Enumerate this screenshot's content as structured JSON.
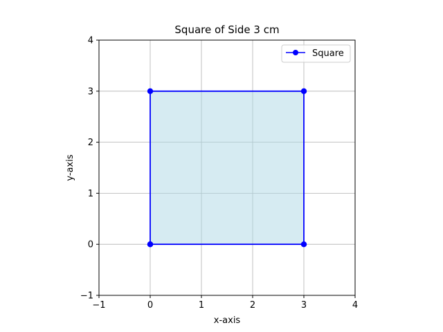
{
  "chart_data": {
    "type": "line",
    "title": "Square of Side 3 cm",
    "xlabel": "x-axis",
    "ylabel": "y-axis",
    "xlim": [
      -1,
      4
    ],
    "ylim": [
      -1,
      4
    ],
    "xticks": [
      -1,
      0,
      1,
      2,
      3,
      4
    ],
    "yticks": [
      -1,
      0,
      1,
      2,
      3,
      4
    ],
    "xtick_labels": [
      "−1",
      "0",
      "1",
      "2",
      "3",
      "4"
    ],
    "ytick_labels": [
      "−1",
      "0",
      "1",
      "2",
      "3",
      "4"
    ],
    "grid": true,
    "legend_position": "top-right",
    "series": [
      {
        "name": "Square",
        "x": [
          0,
          3,
          3,
          0,
          0
        ],
        "y": [
          0,
          0,
          3,
          3,
          0
        ],
        "color": "#0000ff",
        "marker": "circle",
        "fill": "#add8e6"
      }
    ]
  }
}
